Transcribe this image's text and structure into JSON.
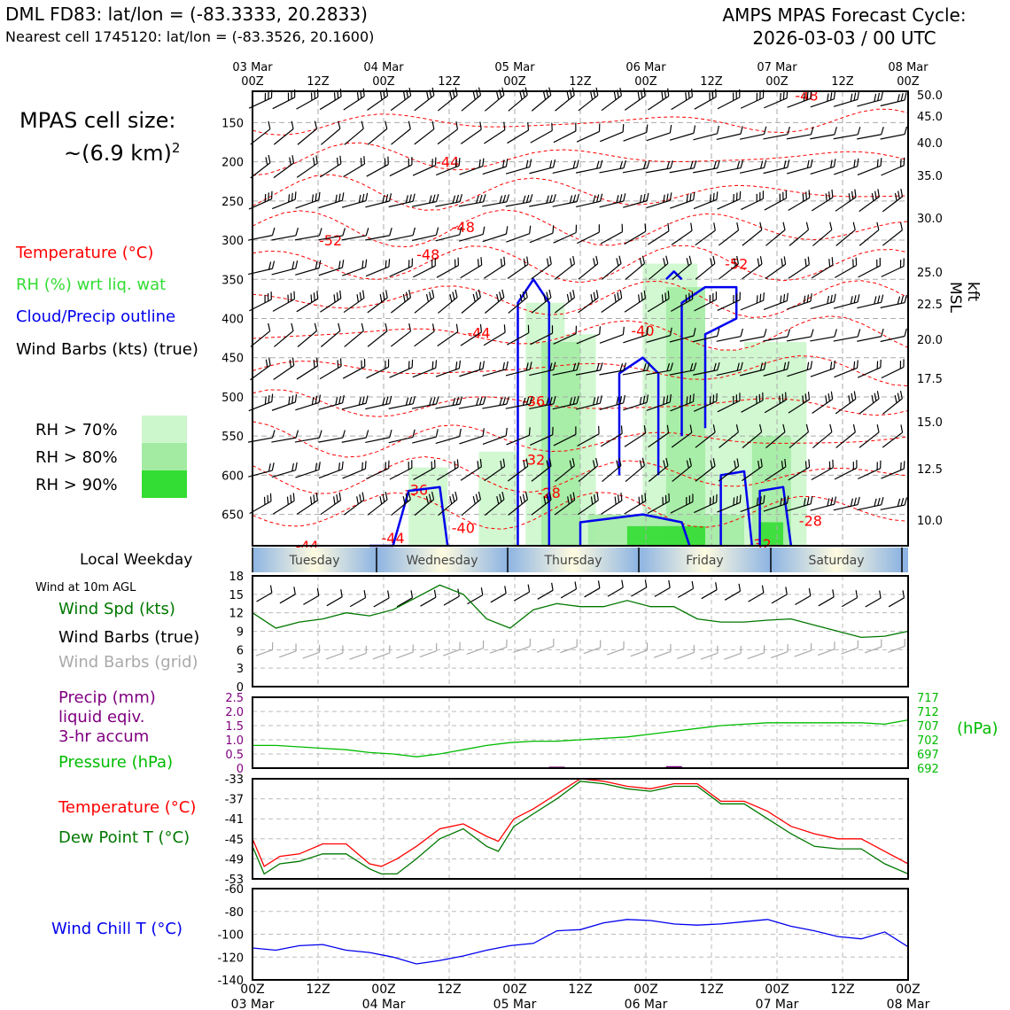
{
  "header": {
    "left_line1": "DML FD83: lat/lon = (-83.3333, 20.2833)",
    "left_line2": "Nearest cell 1745120: lat/lon = (-83.3526, 20.1600)",
    "right_line1": "AMPS MPAS Forecast Cycle:",
    "right_line2": "2026-03-03 / 00 UTC"
  },
  "legend": {
    "cell_size_line1": "MPAS cell size:",
    "cell_size_line2": "~(6.9 km)",
    "cell_size_exp": "2",
    "temperature": "Temperature (°C)",
    "rh": "RH (%) wrt liq. wat",
    "cloud": "Cloud/Precip outline",
    "barbs": "Wind Barbs (kts) (true)",
    "rh70": "RH > 70%",
    "rh80": "RH > 80%",
    "rh90": "RH > 90%",
    "local_weekday": "Local Weekday",
    "wind10m": "Wind at 10m AGL",
    "wind_spd": "Wind Spd (kts)",
    "wind_barbs_true": "Wind Barbs (true)",
    "wind_barbs_grid": "Wind Barbs (grid)",
    "precip1": "Precip (mm)",
    "precip2": "liquid eqiv.",
    "precip3": "3-hr accum",
    "pressure": "Pressure (hPa)",
    "temp2": "Temperature (°C)",
    "dewpt": "Dew Point T (°C)",
    "windchill": "Wind Chill T (°C)",
    "kft": "kft MSL",
    "hpa": "(hPa)"
  },
  "colors": {
    "temperature": "#ff0000",
    "rh": "#33dd33",
    "cloud": "#0000ee",
    "rh70": "#ccf7cc",
    "rh80": "#a3eba3",
    "rh90": "#33dd33",
    "precip": "#800080",
    "pressure": "#00bb00",
    "wind": "#007700",
    "dew": "#007700",
    "chill": "#0000ee",
    "grid_barb": "#aaaaaa"
  },
  "chart_data": [
    {
      "type": "heatmap",
      "name": "time-height cross section",
      "x_top_ticks": [
        "03 Mar\n00Z",
        "12Z",
        "04 Mar\n00Z",
        "12Z",
        "05 Mar\n00Z",
        "12Z",
        "06 Mar\n00Z",
        "12Z",
        "07 Mar\n00Z",
        "12Z",
        "08 Mar\n00Z"
      ],
      "pressure_ticks": [
        150,
        200,
        250,
        300,
        350,
        400,
        450,
        500,
        550,
        600,
        650
      ],
      "kft_ticks": [
        "50.0",
        "45.0",
        "40.0",
        "35.0",
        "30.0",
        "25.0",
        "22.5",
        "20.0",
        "17.5",
        "15.0",
        "12.5",
        "10.0"
      ],
      "temperature_labels": [
        {
          "hour": 20,
          "p": 300,
          "text": "-52"
        },
        {
          "hour": 50,
          "p": 200,
          "text": "-44"
        },
        {
          "hour": 54,
          "p": 283,
          "text": "-48"
        },
        {
          "hour": 45,
          "p": 318,
          "text": "-48"
        },
        {
          "hour": 142,
          "p": 115,
          "text": "-48"
        },
        {
          "hour": 124,
          "p": 330,
          "text": "-52"
        },
        {
          "hour": 100,
          "p": 415,
          "text": "-40"
        },
        {
          "hour": 58,
          "p": 418,
          "text": "-44"
        },
        {
          "hour": 72,
          "p": 505,
          "text": "-36"
        },
        {
          "hour": 72,
          "p": 580,
          "text": "-32"
        },
        {
          "hour": 76,
          "p": 622,
          "text": "-28"
        },
        {
          "hour": 42,
          "p": 618,
          "text": "-36"
        },
        {
          "hour": 54,
          "p": 667,
          "text": "-40"
        },
        {
          "hour": 36,
          "p": 680,
          "text": "-44"
        },
        {
          "hour": 14,
          "p": 690,
          "text": "-44"
        },
        {
          "hour": 130,
          "p": 688,
          "text": "-32"
        },
        {
          "hour": 143,
          "p": 658,
          "text": "-28"
        }
      ]
    },
    {
      "type": "line",
      "name": "10m wind",
      "weekdays": [
        "Tuesday",
        "Wednesday",
        "Thursday",
        "Friday",
        "Saturday"
      ],
      "x_hours": [
        0,
        6,
        12,
        18,
        24,
        30,
        36,
        42,
        48,
        54,
        60,
        66,
        72,
        78,
        84,
        90,
        96,
        102,
        108,
        114,
        120,
        126,
        132,
        138,
        144,
        150,
        156,
        162,
        168
      ],
      "y_ticks": [
        0,
        3,
        6,
        9,
        12,
        15,
        18
      ],
      "ylim": [
        0,
        18
      ],
      "wind_speed": [
        12,
        9.5,
        10.5,
        11,
        12,
        11.5,
        12.5,
        14.5,
        16.5,
        15,
        11,
        9.5,
        12.5,
        13.5,
        13,
        13,
        14,
        13,
        13,
        11,
        10.5,
        10.5,
        10.8,
        11,
        10,
        9,
        8,
        8.2,
        9
      ]
    },
    {
      "type": "line",
      "name": "precip and pressure",
      "precip_ticks": [
        "2.5",
        "2.0",
        "1.5",
        "1.0",
        "0.5",
        "0"
      ],
      "pressure_ticks": [
        "717",
        "712",
        "707",
        "702",
        "697",
        "692"
      ],
      "ylim_precip": [
        0,
        2.5
      ],
      "ylim_pressure": [
        692,
        717
      ],
      "precip_bars": [
        {
          "hour": 78,
          "value": 0.05
        },
        {
          "hour": 108,
          "value": 0.07
        }
      ],
      "x_hours": [
        0,
        6,
        12,
        18,
        24,
        30,
        36,
        42,
        48,
        54,
        60,
        66,
        72,
        78,
        84,
        90,
        96,
        102,
        108,
        114,
        120,
        126,
        132,
        138,
        144,
        150,
        156,
        162,
        168
      ],
      "pressure": [
        700,
        700,
        699.5,
        699,
        698.5,
        697.5,
        697,
        696,
        697,
        698.5,
        700,
        701,
        701.5,
        701.5,
        702,
        702.5,
        703,
        704,
        705,
        706,
        707,
        707.5,
        708,
        708,
        708,
        708,
        708,
        707.5,
        709
      ]
    },
    {
      "type": "line",
      "name": "temperature and dew point",
      "y_ticks": [
        -33,
        -37,
        -41,
        -45,
        -49,
        -53
      ],
      "ylim": [
        -53,
        -33
      ],
      "x_hours": [
        0,
        3,
        7,
        12,
        18,
        24,
        30,
        33,
        37,
        42,
        48,
        54,
        60,
        63,
        67,
        72,
        78,
        84,
        90,
        96,
        102,
        108,
        114,
        120,
        126,
        132,
        138,
        144,
        150,
        156,
        162,
        168
      ],
      "temperature": [
        -45,
        -50.5,
        -48.5,
        -48,
        -46,
        -46,
        -50,
        -50.5,
        -49,
        -46.5,
        -43,
        -42,
        -44.5,
        -45.5,
        -41,
        -39,
        -36,
        -33,
        -33.5,
        -34.5,
        -35,
        -34,
        -34,
        -37.5,
        -37.5,
        -39.5,
        -42.5,
        -44,
        -45,
        -45,
        -47.5,
        -50
      ],
      "dew_point": [
        -46.5,
        -52,
        -50,
        -49.5,
        -48,
        -48,
        -51,
        -52,
        -52,
        -49,
        -45,
        -43,
        -46.5,
        -47.5,
        -42.5,
        -40,
        -37,
        -33.5,
        -34,
        -35,
        -35.5,
        -34.5,
        -34.5,
        -38,
        -38,
        -41,
        -44,
        -46.5,
        -47,
        -47,
        -50,
        -52
      ]
    },
    {
      "type": "line",
      "name": "wind chill",
      "y_ticks": [
        -60,
        -80,
        -100,
        -120,
        -140
      ],
      "ylim": [
        -140,
        -60
      ],
      "x_hours": [
        0,
        6,
        12,
        18,
        24,
        30,
        36,
        42,
        48,
        54,
        60,
        66,
        72,
        78,
        84,
        90,
        96,
        102,
        108,
        114,
        120,
        126,
        132,
        138,
        144,
        150,
        156,
        162,
        168
      ],
      "wind_chill": [
        -112,
        -114,
        -110,
        -109,
        -114,
        -116,
        -120,
        -126,
        -123,
        -119,
        -114,
        -110,
        -108,
        -97,
        -96,
        -90,
        -87,
        -88,
        -91,
        -92,
        -91,
        -89,
        -87,
        -93,
        -97,
        -102,
        -104,
        -98,
        -111
      ],
      "x_ticks_bottom": [
        "00Z\n03 Mar",
        "12Z",
        "00Z\n04 Mar",
        "12Z",
        "00Z\n05 Mar",
        "12Z",
        "00Z\n06 Mar",
        "12Z",
        "00Z\n07 Mar",
        "12Z",
        "00Z\n08 Mar"
      ]
    }
  ]
}
